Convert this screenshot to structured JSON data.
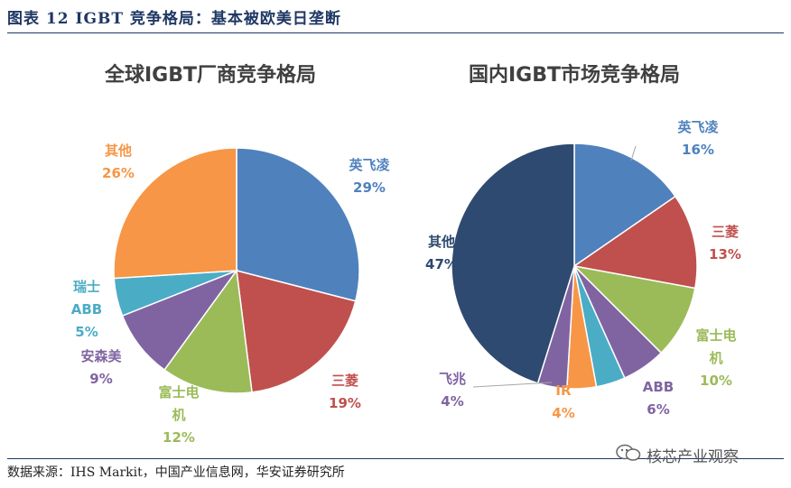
{
  "figure_title": "图表 12  IGBT 竞争格局：基本被欧美日垄断",
  "source": "数据来源：IHS Markit，中国产业信息网，华安证券研究所",
  "watermark": "核芯产业观察",
  "chart_data": [
    {
      "type": "pie",
      "title": "全球IGBT厂商竞争格局",
      "slices": [
        {
          "label": "英飞凌",
          "value": 29,
          "display": "29%",
          "color": "#4f81bd"
        },
        {
          "label": "三菱",
          "value": 19,
          "display": "19%",
          "color": "#c0504d"
        },
        {
          "label": "富士电机",
          "value": 12,
          "display": "12%",
          "color": "#9bbb59"
        },
        {
          "label": "安森美",
          "value": 9,
          "display": "9%",
          "color": "#8064a2"
        },
        {
          "label": "瑞士ABB",
          "value": 5,
          "display": "5%",
          "color": "#4bacc6"
        },
        {
          "label": "其他",
          "value": 26,
          "display": "26%",
          "color": "#f79646"
        }
      ]
    },
    {
      "type": "pie",
      "title": "国内IGBT市场竞争格局",
      "slices": [
        {
          "label": "英飞凌",
          "value": 16,
          "display": "16%",
          "color": "#4f81bd"
        },
        {
          "label": "三菱",
          "value": 13,
          "display": "13%",
          "color": "#c0504d"
        },
        {
          "label": "富士电机",
          "value": 10,
          "display": "10%",
          "color": "#9bbb59"
        },
        {
          "label": "ABB",
          "value": 6,
          "display": "6%",
          "color": "#8064a2"
        },
        {
          "label": "IR",
          "value": 4,
          "display": "4%",
          "color": "#4bacc6"
        },
        {
          "label": "IR",
          "value": 4,
          "display": "4%",
          "color": "#f79646"
        },
        {
          "label": "飞兆",
          "value": 4,
          "display": "4%",
          "color": "#8064a2"
        },
        {
          "label": "其他",
          "value": 47,
          "display": "47%",
          "color": "#2e4a70"
        }
      ]
    }
  ]
}
